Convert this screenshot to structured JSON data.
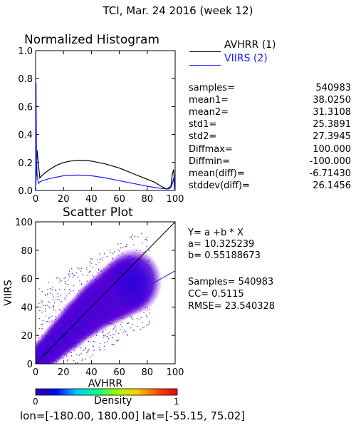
{
  "header": {
    "title": "TCI,  Mar. 24 2016 (week 12)"
  },
  "histogram": {
    "title": "Normalized Histogram",
    "legend": [
      {
        "label": "AVHRR (1)",
        "color": "#000000"
      },
      {
        "label": "VIIRS (2)",
        "color": "#1a1aff"
      }
    ],
    "stats": [
      {
        "key": "samples=",
        "value": "540983"
      },
      {
        "key": "mean1=",
        "value": "38.0250"
      },
      {
        "key": "mean2=",
        "value": "31.3108"
      },
      {
        "key": "std1=",
        "value": "25.3891"
      },
      {
        "key": "std2=",
        "value": "27.3945"
      },
      {
        "key": "Diffmax=",
        "value": "100.000"
      },
      {
        "key": "Diffmin=",
        "value": "-100.000"
      },
      {
        "key": "mean(diff)=",
        "value": "-6.71430"
      },
      {
        "key": "stddev(diff)=",
        "value": "26.1456"
      }
    ]
  },
  "scatter": {
    "title": "Scatter Plot",
    "regression": {
      "equation": "Y= a +b * X",
      "a": "a= 10.325239",
      "b": "b= 0.55188673",
      "samples": "Samples= 540983",
      "cc": "CC=  0.5115",
      "rmse": "RMSE= 23.540328"
    },
    "colorbar": {
      "label": "Density",
      "min": "0",
      "max": "1"
    }
  },
  "footer": {
    "extent": "lon=[-180.00, 180.00] lat=[-55.15, 75.02]"
  },
  "chart_data": [
    {
      "type": "line",
      "title": "Normalized Histogram",
      "xlim": [
        0,
        100
      ],
      "ylim": [
        0,
        1.0
      ],
      "xticks": [
        "0",
        "20",
        "40",
        "60",
        "80",
        "100"
      ],
      "yticks": [
        "0.0",
        "0.2",
        "0.4",
        "0.6",
        "0.8",
        "1.0"
      ],
      "series": [
        {
          "name": "AVHRR (1)",
          "color": "#000000",
          "x": [
            0,
            0.5,
            1,
            2,
            3,
            4,
            6,
            10,
            15,
            20,
            25,
            30,
            35,
            40,
            45,
            50,
            55,
            60,
            65,
            70,
            75,
            80,
            85,
            90,
            94,
            97,
            98,
            99,
            99.5,
            100
          ],
          "y": [
            0.0,
            0.12,
            0.29,
            0.19,
            0.09,
            0.1,
            0.12,
            0.15,
            0.18,
            0.2,
            0.21,
            0.215,
            0.215,
            0.21,
            0.2,
            0.19,
            0.175,
            0.16,
            0.14,
            0.12,
            0.1,
            0.08,
            0.06,
            0.03,
            0.01,
            0.03,
            0.12,
            0.15,
            0.05,
            0.0
          ]
        },
        {
          "name": "VIIRS (2)",
          "color": "#1a1aff",
          "x": [
            0,
            0.3,
            0.6,
            1,
            2,
            3,
            5,
            10,
            20,
            30,
            40,
            50,
            60,
            70,
            80,
            90,
            95,
            97,
            98,
            99,
            99.5,
            100
          ],
          "y": [
            0.0,
            0.77,
            0.3,
            0.12,
            0.05,
            0.06,
            0.07,
            0.085,
            0.105,
            0.11,
            0.105,
            0.09,
            0.07,
            0.05,
            0.03,
            0.015,
            0.01,
            0.02,
            0.05,
            0.09,
            0.02,
            0.0
          ]
        }
      ]
    },
    {
      "type": "scatter",
      "title": "Scatter Plot",
      "xlabel": "AVHRR",
      "ylabel": "VIIRS",
      "xlim": [
        0,
        100
      ],
      "ylim": [
        0,
        100
      ],
      "xticks": [
        "0",
        "20",
        "40",
        "60",
        "80",
        "100"
      ],
      "yticks": [
        "0",
        "20",
        "40",
        "60",
        "80",
        "100"
      ],
      "lines": [
        {
          "name": "1:1",
          "color": "#000000",
          "x": [
            0,
            100
          ],
          "y": [
            0,
            100
          ]
        },
        {
          "name": "fit",
          "color": "#2020c0",
          "x": [
            0,
            100
          ],
          "y": [
            10.325239,
            65.513912
          ]
        }
      ],
      "density_cloud": {
        "samples": 540983,
        "points": [
          [
            2,
            2
          ],
          [
            5,
            6
          ],
          [
            10,
            10
          ],
          [
            15,
            15
          ],
          [
            20,
            20
          ],
          [
            25,
            24
          ],
          [
            30,
            30
          ],
          [
            35,
            33
          ],
          [
            40,
            38
          ],
          [
            45,
            42
          ],
          [
            50,
            45
          ],
          [
            55,
            48
          ],
          [
            60,
            52
          ],
          [
            65,
            55
          ],
          [
            70,
            58
          ]
        ]
      },
      "colorbar": {
        "label": "Density",
        "min": 0,
        "max": 1,
        "colors": [
          "#3300aa",
          "#0000ff",
          "#00c8ff",
          "#00ff90",
          "#a0ff00",
          "#ffd000",
          "#ff5000",
          "#e00000"
        ]
      }
    }
  ]
}
